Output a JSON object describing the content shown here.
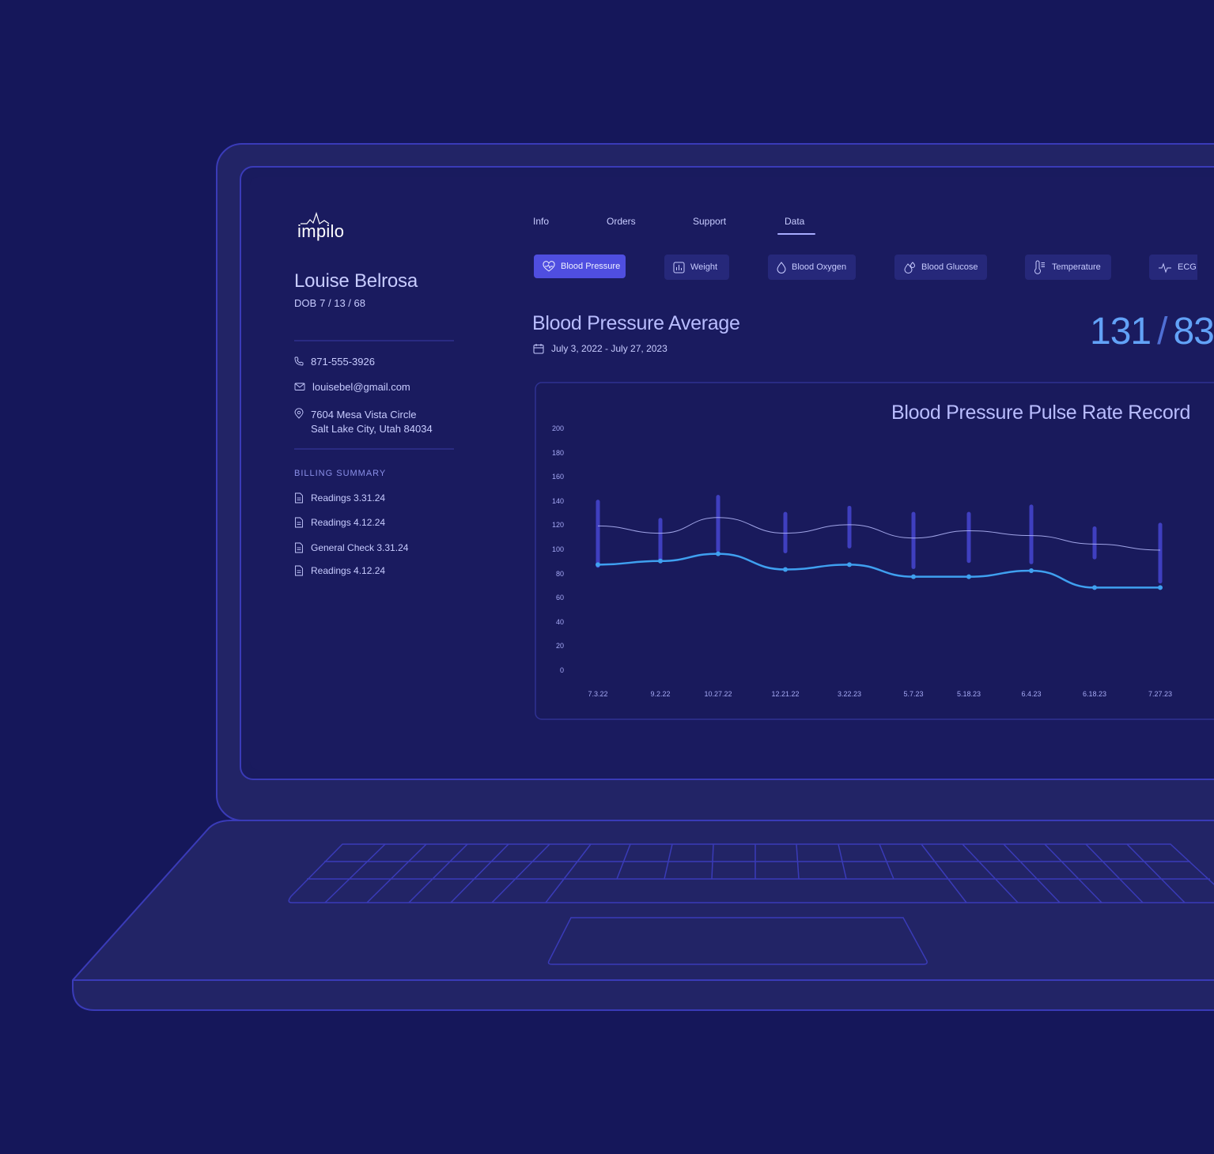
{
  "app": {
    "logo_text": "impilo"
  },
  "patient": {
    "name": "Louise Belrosa",
    "dob_label": "DOB",
    "dob_value": "7 / 13 / 68",
    "phone": "871-555-3926",
    "email": "louisebel@gmail.com",
    "address_line1": "7604 Mesa Vista Circle",
    "address_line2": "Salt Lake City, Utah 84034"
  },
  "billing": {
    "heading": "BILLING SUMMARY",
    "items": [
      "Readings 3.31.24",
      "Readings 4.12.24",
      "General Check 3.31.24",
      "Readings 4.12.24"
    ]
  },
  "tabs": [
    "Info",
    "Orders",
    "Support",
    "Data"
  ],
  "active_tab": "Data",
  "metrics": [
    {
      "label": "Blood Pressure",
      "icon": "heart-icon",
      "active": true
    },
    {
      "label": "Weight",
      "icon": "bar-chart-icon",
      "active": false
    },
    {
      "label": "Blood Oxygen",
      "icon": "droplet-icon",
      "active": false
    },
    {
      "label": "Blood Glucose",
      "icon": "droplets-icon",
      "active": false
    },
    {
      "label": "Temperature",
      "icon": "thermometer-icon",
      "active": false
    },
    {
      "label": "ECG",
      "icon": "pulse-icon",
      "active": false
    }
  ],
  "summary": {
    "title": "Blood Pressure Average",
    "date_range": "July 3, 2022 - July 27, 2023",
    "systolic": "131",
    "diastolic": "83"
  },
  "colors": {
    "background": "#15175a",
    "accent": "#4f4ee0",
    "pulse_line": "#3fa0f0",
    "systolic_line": "#b9bdff",
    "range_bar": "#3f3fbf",
    "big_number": "#62a2f7"
  },
  "chart_data": {
    "type": "line",
    "title": "Blood Pressure Pulse Rate Record",
    "categories": [
      "7.3.22",
      "9.2.22",
      "10.27.22",
      "12.21.22",
      "3.22.23",
      "5.7.23",
      "5.18.23",
      "6.4.23",
      "6.18.23",
      "7.27.23"
    ],
    "ylim": [
      0,
      200
    ],
    "yticks": [
      200,
      180,
      160,
      140,
      120,
      100,
      80,
      60,
      40,
      20,
      0
    ],
    "series": [
      {
        "values": [
          120,
          114,
          127,
          114,
          121,
          110,
          116,
          112,
          105,
          100
        ]
      },
      {
        "values": [
          88,
          91,
          97,
          84,
          88,
          78,
          78,
          83,
          69,
          69
        ]
      }
    ],
    "ranges": [
      [
        87,
        140
      ],
      [
        92,
        125
      ],
      [
        100,
        144
      ],
      [
        99,
        130
      ],
      [
        103,
        135
      ],
      [
        86,
        130
      ],
      [
        91,
        130
      ],
      [
        90,
        136
      ],
      [
        94,
        118
      ],
      [
        74,
        121
      ]
    ],
    "grid": false,
    "legend": "none"
  }
}
